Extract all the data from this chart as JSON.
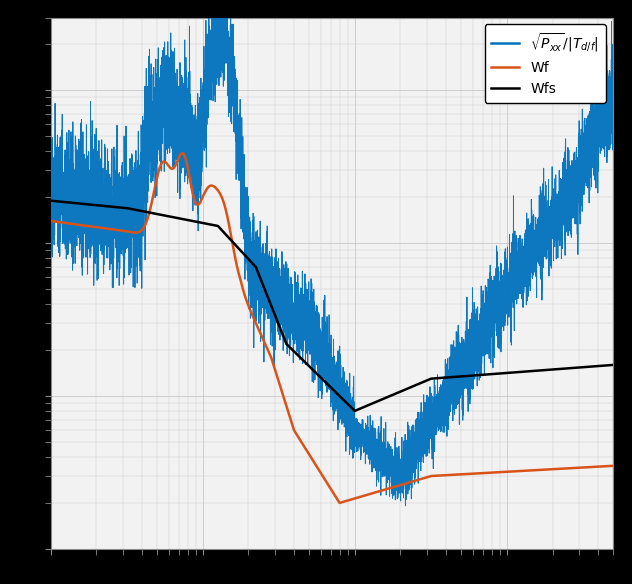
{
  "line1_color": "#0072bd",
  "line2_color": "#d95319",
  "line3_color": "#000000",
  "legend_labels": [
    "$\\sqrt{P_{xx}}/|T_{d/f}|$",
    "Wf",
    "Wfs"
  ],
  "legend_colors": [
    "#0072bd",
    "#d95319",
    "#000000"
  ],
  "grid_color": "#c8c8c8",
  "bg_color": "#f2f2f2",
  "fig_bg_color": "#000000",
  "xlim": [
    0.1,
    500
  ],
  "ylim": [
    0.001,
    3.0
  ]
}
